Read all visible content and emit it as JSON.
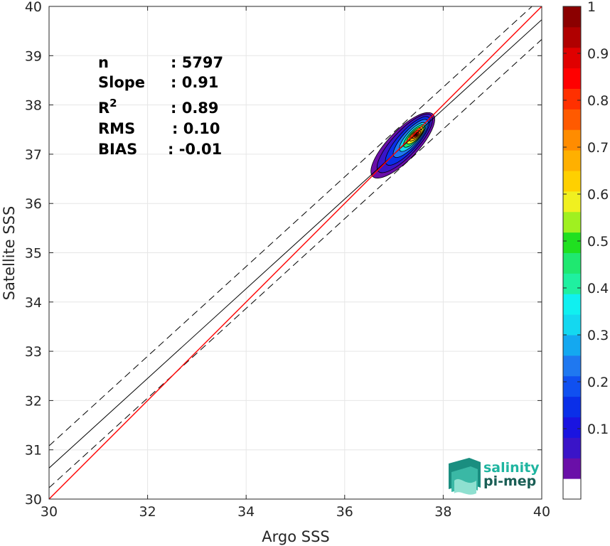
{
  "chart_data": {
    "type": "scatter",
    "xlabel": "Argo SSS",
    "ylabel": "Satellite SSS",
    "xlim": [
      30,
      40
    ],
    "ylim": [
      30,
      40
    ],
    "xticks": [
      30,
      32,
      34,
      36,
      38,
      40
    ],
    "yticks": [
      30,
      31,
      32,
      33,
      34,
      35,
      36,
      37,
      38,
      39,
      40
    ],
    "grid": true,
    "stats": [
      {
        "name": "n",
        "sep": ": 5797"
      },
      {
        "name": "Slope",
        "sep": ": 0.91"
      },
      {
        "name": "R",
        "sup": "2",
        "sep": ": 0.89"
      },
      {
        "name": "RMS",
        "sep": ": 0.10"
      },
      {
        "name": "BIAS",
        "sep": ": -0.01"
      }
    ],
    "one_to_one_line": {
      "from": [
        30,
        30
      ],
      "to": [
        40,
        40
      ],
      "color": "#ff0000"
    },
    "fit_line": {
      "slope": 0.91,
      "intercept": 3.33,
      "color": "#000000"
    },
    "rms_band_lines": {
      "offsets": [
        0.45,
        -0.4
      ],
      "color": "#000000",
      "style": "dashed"
    },
    "density_peak": {
      "x": 37.45,
      "y": 37.4
    },
    "density_levels": [
      {
        "level": 0.05,
        "color": "#6a0fa8",
        "rx": 0.88,
        "ry": 0.3,
        "rot": 46,
        "cx": 37.18,
        "cy": 37.18
      },
      {
        "level": 0.1,
        "color": "#3a14c8",
        "rx": 0.78,
        "ry": 0.25,
        "rot": 47,
        "cx": 37.22,
        "cy": 37.22
      },
      {
        "level": 0.2,
        "color": "#0a2fe8",
        "rx": 0.64,
        "ry": 0.2,
        "rot": 48,
        "cx": 37.28,
        "cy": 37.27
      },
      {
        "level": 0.3,
        "color": "#1f78f0",
        "rx": 0.5,
        "ry": 0.16,
        "rot": 48,
        "cx": 37.34,
        "cy": 37.32
      },
      {
        "level": 0.4,
        "color": "#14d8f0",
        "rx": 0.38,
        "ry": 0.125,
        "rot": 48,
        "cx": 37.38,
        "cy": 37.35
      },
      {
        "level": 0.5,
        "color": "#1fe870",
        "rx": 0.3,
        "ry": 0.1,
        "rot": 47,
        "cx": 37.41,
        "cy": 37.37
      },
      {
        "level": 0.6,
        "color": "#e8f020",
        "rx": 0.23,
        "ry": 0.082,
        "rot": 45,
        "cx": 37.43,
        "cy": 37.38
      },
      {
        "level": 0.7,
        "color": "#ffb000",
        "rx": 0.17,
        "ry": 0.064,
        "rot": 42,
        "cx": 37.44,
        "cy": 37.39
      },
      {
        "level": 0.8,
        "color": "#ff5a00",
        "rx": 0.11,
        "ry": 0.047,
        "rot": 40,
        "cx": 37.45,
        "cy": 37.4
      },
      {
        "level": 0.9,
        "color": "#e00000",
        "rx": 0.06,
        "ry": 0.03,
        "rot": 40,
        "cx": 37.45,
        "cy": 37.4
      },
      {
        "level": 1.0,
        "color": "#8b0000",
        "rx": 0.025,
        "ry": 0.015,
        "rot": 40,
        "cx": 37.45,
        "cy": 37.4
      }
    ],
    "colorbar": {
      "colors": [
        "#ffffff",
        "#6a0fa8",
        "#3a14c8",
        "#1a14e0",
        "#0a2fe8",
        "#1050f0",
        "#1f78f0",
        "#14a8f0",
        "#14d8f0",
        "#10f0f0",
        "#1ff0a0",
        "#1fe870",
        "#20e020",
        "#a0f020",
        "#f0f020",
        "#ffd000",
        "#ffb000",
        "#ff8c00",
        "#ff5a00",
        "#ff3000",
        "#ff0000",
        "#e00000",
        "#b00000",
        "#8b0000"
      ],
      "tick_labels": [
        "0.1",
        "0.2",
        "0.3",
        "0.4",
        "0.5",
        "0.6",
        "0.7",
        "0.8",
        "0.9",
        "1"
      ],
      "tick_values": [
        0.1,
        0.2,
        0.3,
        0.4,
        0.5,
        0.6,
        0.7,
        0.8,
        0.9,
        1.0
      ],
      "range": [
        -0.05,
        1.0
      ]
    }
  },
  "logo": {
    "line1": "salinity",
    "line2": "pi-mep",
    "color1": "#1fb5a0",
    "color2": "#1a5e55"
  }
}
